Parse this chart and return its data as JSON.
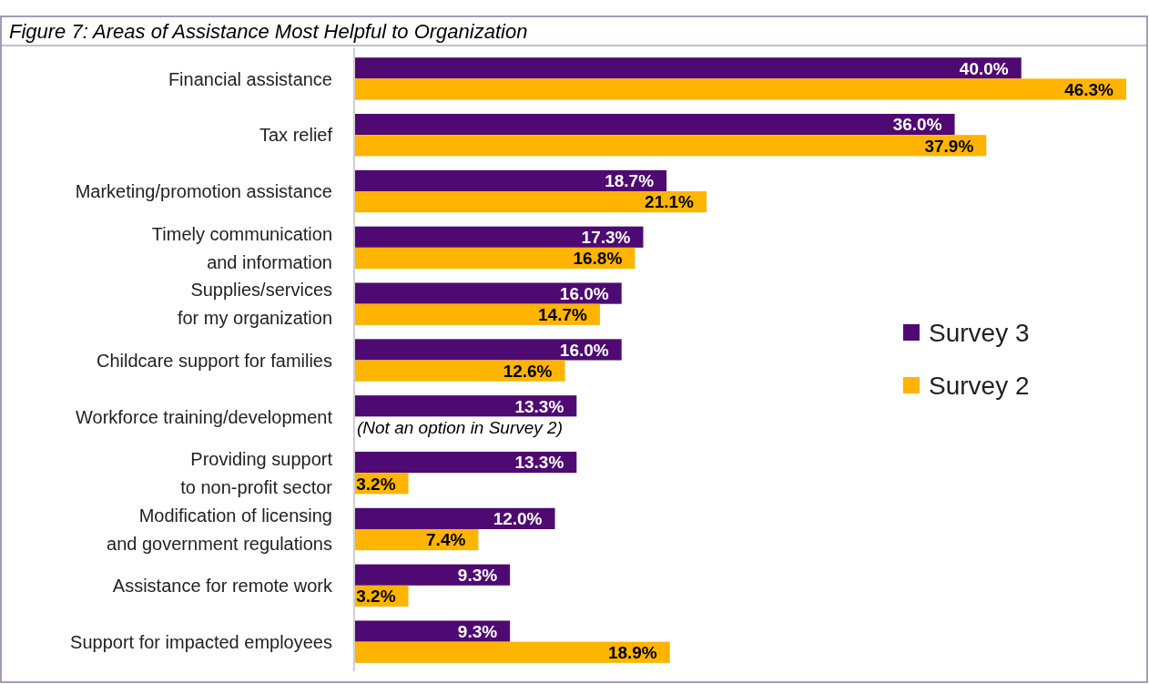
{
  "chart_data": {
    "type": "bar",
    "orientation": "horizontal",
    "title": "Figure 7: Areas of Assistance Most Helpful to Organization",
    "categories": [
      "Financial assistance",
      "Tax relief",
      "Marketing/promotion assistance",
      "Timely communication and information",
      "Supplies/services for my organization",
      "Childcare support for families",
      "Workforce training/development",
      "Providing support to non-profit sector",
      "Modification of licensing and government regulations",
      "Assistance for remote work",
      "Support for impacted employees"
    ],
    "series": [
      {
        "name": "Survey 3",
        "color": "#4e0a72",
        "values": [
          40.0,
          36.0,
          18.7,
          17.3,
          16.0,
          16.0,
          13.3,
          13.3,
          12.0,
          9.3,
          9.3
        ],
        "value_labels": [
          "40.0%",
          "36.0%",
          "18.7%",
          "17.3%",
          "16.0%",
          "16.0%",
          "13.3%",
          "13.3%",
          "12.0%",
          "9.3%",
          "9.3%"
        ]
      },
      {
        "name": "Survey 2",
        "color": "#ffb400",
        "values": [
          46.3,
          37.9,
          21.1,
          16.8,
          14.7,
          12.6,
          null,
          3.2,
          7.4,
          3.2,
          18.9
        ],
        "value_labels": [
          "46.3%",
          "37.9%",
          "21.1%",
          "16.8%",
          "14.7%",
          "12.6%",
          null,
          "3.2%",
          "7.4%",
          "3.2%",
          "18.9%"
        ]
      }
    ],
    "annotations": [
      {
        "text": "(Not an option in Survey 2)",
        "x": 0,
        "y": "Workforce training/development"
      }
    ],
    "legend": "right",
    "grid": false
  }
}
